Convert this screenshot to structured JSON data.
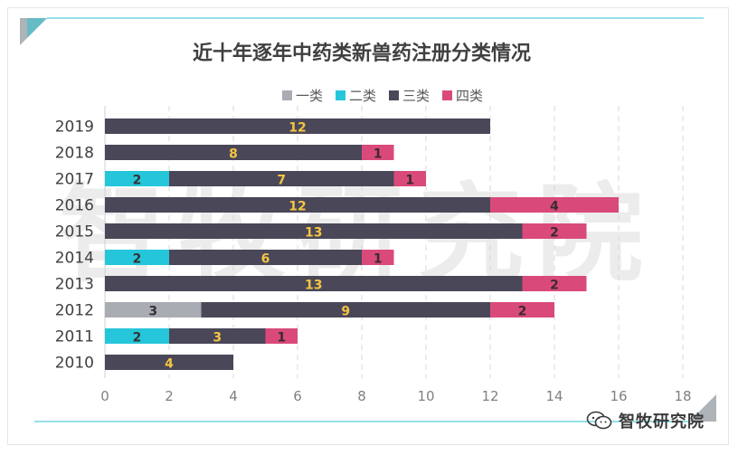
{
  "chart_data": {
    "type": "bar",
    "orientation": "horizontal",
    "stacked": true,
    "title": "近十年逐年中药类新兽药注册分类情况",
    "categories": [
      "2019",
      "2018",
      "2017",
      "2016",
      "2015",
      "2014",
      "2013",
      "2012",
      "2011",
      "2010"
    ],
    "series": [
      {
        "name": "一类",
        "color": "#a9acb3",
        "values": [
          0,
          0,
          0,
          0,
          0,
          0,
          0,
          3,
          0,
          0
        ]
      },
      {
        "name": "二类",
        "color": "#26c6da",
        "values": [
          0,
          0,
          2,
          0,
          0,
          2,
          0,
          0,
          2,
          0
        ]
      },
      {
        "name": "三类",
        "color": "#4a4758",
        "values": [
          12,
          8,
          7,
          12,
          13,
          6,
          13,
          9,
          3,
          4
        ]
      },
      {
        "name": "四类",
        "color": "#d94a7a",
        "values": [
          0,
          1,
          1,
          4,
          2,
          1,
          2,
          2,
          1,
          0
        ]
      }
    ],
    "xlim": [
      0,
      18
    ],
    "x_ticks": [
      0,
      2,
      4,
      6,
      8,
      10,
      12,
      14,
      16,
      18
    ],
    "xlabel": "",
    "ylabel": "",
    "legend": "top",
    "grid": "vertical dashed",
    "data_label_color": "#f5c542",
    "watermark": "智牧研究院"
  },
  "footer": {
    "brand_label": "智牧研究院",
    "brand_icon": "wechat-icon"
  }
}
